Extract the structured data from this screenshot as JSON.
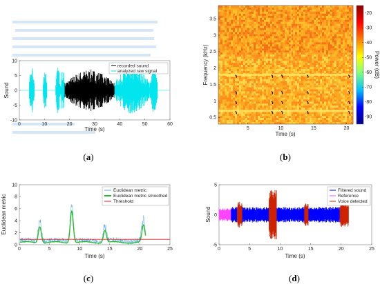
{
  "panels": {
    "a": {
      "caption_open": "(",
      "caption_letter": "a",
      "caption_close": ")",
      "chart_data": {
        "type": "line",
        "xlabel": "Time (s)",
        "ylabel": "Sound",
        "xlim": [
          0,
          60
        ],
        "ylim": [
          -10,
          10
        ],
        "xticks": [
          "0",
          "10",
          "20",
          "30",
          "40",
          "50",
          "60"
        ],
        "yticks": [
          "10",
          "5",
          "0",
          "-5",
          "-10"
        ],
        "legend": [
          "recorded sound",
          "analyzed raw signal"
        ],
        "legend_position": "top-right",
        "series": [
          {
            "name": "recorded sound",
            "color": "#000000",
            "segments": [
              [
                18,
                38
              ]
            ],
            "amplitude": 7
          },
          {
            "name": "analyzed raw signal",
            "color": "#00e5ee",
            "segments": [
              [
                4,
                6
              ],
              [
                9.5,
                11
              ],
              [
                14.5,
                16.5
              ],
              [
                16.5,
                18
              ],
              [
                38,
                52
              ],
              [
                52,
                55
              ]
            ],
            "amplitude": 8
          }
        ]
      }
    },
    "b": {
      "caption_open": "(",
      "caption_letter": "b",
      "caption_close": ")",
      "chart_data": {
        "type": "heatmap",
        "xlabel": "Time (s)",
        "ylabel": "Frequency (kHz)",
        "xlim": [
          0.5,
          21
        ],
        "ylim": [
          0.3,
          3.9
        ],
        "xticks": [
          "5",
          "10",
          "15",
          "20"
        ],
        "yticks": [
          "3.5",
          "3",
          "2.5",
          "2",
          "1.5",
          "1",
          "0.5"
        ],
        "colorbar_label": "Power (dB)",
        "colorbar_ticks": [
          "-20",
          "-30",
          "-40",
          "-50",
          "-60",
          "-70",
          "-80",
          "-90"
        ],
        "colorbar_range": [
          -95,
          -15
        ],
        "colormap": [
          "#00008b",
          "#0000ff",
          "#00bfff",
          "#7fff7f",
          "#ffff00",
          "#ff7f00",
          "#ff0000",
          "#8b0000"
        ],
        "bands_khz": [
          1.8,
          0.7
        ],
        "events_s": [
          3.3,
          8.8,
          10.3,
          14.2,
          20.5
        ]
      }
    },
    "c": {
      "caption_open": "(",
      "caption_letter": "c",
      "caption_close": ")",
      "chart_data": {
        "type": "line",
        "xlabel": "Time (s)",
        "ylabel": "Euclidean metric",
        "xlim": [
          0,
          25
        ],
        "ylim": [
          0,
          10
        ],
        "xticks": [
          "0",
          "5",
          "10",
          "15",
          "20",
          "25"
        ],
        "yticks": [
          "10",
          "8",
          "6",
          "4",
          "2",
          "0"
        ],
        "legend": [
          "Euclidean metric",
          "Euclidean metric smoothed",
          "Threshold"
        ],
        "legend_position": "top-right",
        "threshold": 0.9,
        "peaks": [
          {
            "t": 3.4,
            "h": 3.2
          },
          {
            "t": 8.7,
            "h": 6.3
          },
          {
            "t": 14.2,
            "h": 2.4
          },
          {
            "t": 20.6,
            "h": 3.3
          }
        ],
        "colors": [
          "#5aa9e6",
          "#22bb22",
          "#ee2222"
        ]
      }
    },
    "d": {
      "caption_open": "(",
      "caption_letter": "d",
      "caption_close": ")",
      "chart_data": {
        "type": "line",
        "xlabel": "Time (s)",
        "ylabel": "Sound",
        "xlim": [
          0,
          25
        ],
        "ylim": [
          -5,
          5
        ],
        "xticks": [
          "0",
          "5",
          "10",
          "15",
          "20",
          "25"
        ],
        "yticks": [
          "5",
          "0",
          "-5"
        ],
        "legend": [
          "Filtered sound",
          "Reference",
          "Voice detected"
        ],
        "legend_position": "top-right",
        "colors": [
          "#0000ff",
          "#ff44ff",
          "#cc2200"
        ],
        "reference_segments": [
          [
            0,
            2
          ]
        ],
        "filtered_segments": [
          [
            2,
            20.2
          ]
        ],
        "voice_segments": [
          [
            3.0,
            3.8
          ],
          [
            8.2,
            9.4
          ],
          [
            14.0,
            14.6
          ],
          [
            19.8,
            21.2
          ]
        ]
      }
    }
  }
}
